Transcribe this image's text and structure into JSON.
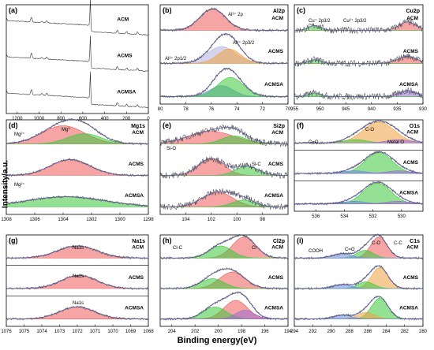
{
  "figure": {
    "x_axis_title": "Binding energy(eV)",
    "y_axis_title": "Intensity/a.u."
  },
  "colors": {
    "data_line": "#444444",
    "envelope": "#5a5aa0",
    "fills": [
      "#ee5a5a",
      "#3cc83c",
      "#f0a040",
      "#9a6ad0",
      "#6688dd",
      "#b0b0e0"
    ]
  },
  "chart_data": [
    {
      "type": "line",
      "panel": "(a)",
      "element": "",
      "xlim": [
        1300,
        0
      ],
      "xticks": [
        "0",
        "200",
        "400",
        "600",
        "800",
        "1000",
        "1200"
      ],
      "series": [
        {
          "name": "ACM",
          "peaks": []
        },
        {
          "name": "ACMS",
          "peaks": []
        },
        {
          "name": "ACMSA",
          "peaks": []
        }
      ]
    },
    {
      "type": "area",
      "panel": "(b)",
      "element": "Al2p",
      "xlim": [
        80,
        70
      ],
      "xticks": [
        "80",
        "78",
        "76",
        "74",
        "72",
        "70"
      ],
      "annotations": [
        "Al³⁺ 2p",
        "Al³⁺ 2p1/2",
        "Al³⁺ 2p3/2"
      ],
      "series": [
        {
          "name": "ACM",
          "peaks": [
            {
              "center": 75.9,
              "height": 0.9,
              "width": 1.0,
              "color": "#ee5a5a"
            }
          ]
        },
        {
          "name": "ACMS",
          "peaks": [
            {
              "center": 75.2,
              "height": 0.7,
              "width": 1.1,
              "color": "#b0b0e0"
            },
            {
              "center": 74.6,
              "height": 0.6,
              "width": 0.9,
              "color": "#f0a040"
            }
          ]
        },
        {
          "name": "ACMSA",
          "peaks": [
            {
              "center": 75.2,
              "height": 0.45,
              "width": 0.9,
              "color": "#6688dd"
            },
            {
              "center": 74.5,
              "height": 0.8,
              "width": 1.0,
              "color": "#3cc83c"
            }
          ]
        }
      ]
    },
    {
      "type": "area",
      "panel": "(c)",
      "element": "Cu2p",
      "xlim": [
        955,
        930
      ],
      "xticks": [
        "955",
        "950",
        "945",
        "940",
        "935",
        "930"
      ],
      "annotations": [
        "Cu⁺ 2p3/2",
        "Cu²⁺ 2p3/2"
      ],
      "series": [
        {
          "name": "ACM",
          "peaks": [
            {
              "center": 933,
              "height": 0.35,
              "width": 1.6,
              "color": "#ee5a5a"
            },
            {
              "center": 951,
              "height": 0.2,
              "width": 1.2,
              "color": "#3cc83c"
            }
          ]
        },
        {
          "name": "ACMS",
          "peaks": [
            {
              "center": 933,
              "height": 0.3,
              "width": 1.8,
              "color": "#ee5a5a"
            },
            {
              "center": 951,
              "height": 0.15,
              "width": 1.2,
              "color": "#3cc83c"
            }
          ]
        },
        {
          "name": "ACMSA",
          "peaks": [
            {
              "center": 933,
              "height": 0.25,
              "width": 1.6,
              "color": "#9a6ad0"
            },
            {
              "center": 951,
              "height": 0.15,
              "width": 1.2,
              "color": "#3cc83c"
            }
          ]
        }
      ]
    },
    {
      "type": "area",
      "panel": "(d)",
      "element": "Mg1s",
      "xlim": [
        1308,
        1298
      ],
      "xticks": [
        "1308",
        "1306",
        "1304",
        "1302",
        "1300",
        "1298"
      ],
      "annotations": [
        "Mg²⁺",
        "Mg⁰",
        "Mg²⁺"
      ],
      "series": [
        {
          "name": "ACM",
          "peaks": [
            {
              "center": 1304.0,
              "height": 0.8,
              "width": 1.5,
              "color": "#ee5a5a"
            },
            {
              "center": 1302.5,
              "height": 0.45,
              "width": 1.2,
              "color": "#3cc83c"
            }
          ]
        },
        {
          "name": "ACMS",
          "peaks": [
            {
              "center": 1303.5,
              "height": 0.7,
              "width": 1.4,
              "color": "#ee5a5a"
            }
          ]
        },
        {
          "name": "ACMSA",
          "peaks": [
            {
              "center": 1303.8,
              "height": 0.45,
              "width": 2.8,
              "color": "#3cc83c"
            }
          ]
        }
      ]
    },
    {
      "type": "area",
      "panel": "(e)",
      "element": "Si2p",
      "xlim": [
        106,
        96
      ],
      "xticks": [
        "104",
        "102",
        "100",
        "98"
      ],
      "annotations": [
        "Si-O",
        "Si-C"
      ],
      "series": [
        {
          "name": "ACM",
          "peaks": [
            {
              "center": 102.0,
              "height": 0.55,
              "width": 1.8,
              "color": "#ee5a5a"
            },
            {
              "center": 100.2,
              "height": 0.35,
              "width": 1.0,
              "color": "#3cc83c"
            }
          ]
        },
        {
          "name": "ACMS",
          "peaks": [
            {
              "center": 102.0,
              "height": 0.75,
              "width": 1.0,
              "color": "#ee5a5a"
            },
            {
              "center": 99.2,
              "height": 0.4,
              "width": 0.9,
              "color": "#3cc83c"
            }
          ]
        },
        {
          "name": "ACMSA",
          "peaks": [
            {
              "center": 101.5,
              "height": 0.65,
              "width": 1.2,
              "color": "#ee5a5a"
            },
            {
              "center": 99.5,
              "height": 0.3,
              "width": 0.9,
              "color": "#3cc83c"
            }
          ]
        }
      ]
    },
    {
      "type": "area",
      "panel": "(f)",
      "element": "O1s",
      "xlim": [
        537.5,
        528.5
      ],
      "xticks": [
        "536",
        "534",
        "532",
        "530"
      ],
      "annotations": [
        "C-O",
        "C=O",
        "Metal O"
      ],
      "series": [
        {
          "name": "ACM",
          "peaks": [
            {
              "center": 531.6,
              "height": 0.95,
              "width": 1.1,
              "color": "#f0a040"
            },
            {
              "center": 533.2,
              "height": 0.15,
              "width": 0.8,
              "color": "#3cc83c"
            },
            {
              "center": 530.2,
              "height": 0.15,
              "width": 0.8,
              "color": "#9a6ad0"
            }
          ]
        },
        {
          "name": "ACMS",
          "peaks": [
            {
              "center": 531.6,
              "height": 0.95,
              "width": 0.95,
              "color": "#3cc83c"
            },
            {
              "center": 533.3,
              "height": 0.12,
              "width": 0.8,
              "color": "#6688dd"
            },
            {
              "center": 530.2,
              "height": 0.12,
              "width": 0.8,
              "color": "#9a6ad0"
            }
          ]
        },
        {
          "name": "ACMSA",
          "peaks": [
            {
              "center": 531.7,
              "height": 0.95,
              "width": 0.95,
              "color": "#3cc83c"
            },
            {
              "center": 533.3,
              "height": 0.12,
              "width": 0.8,
              "color": "#6688dd"
            },
            {
              "center": 530.3,
              "height": 0.12,
              "width": 0.8,
              "color": "#9a6ad0"
            }
          ]
        }
      ]
    },
    {
      "type": "area",
      "panel": "(g)",
      "element": "Na1s",
      "xlim": [
        1076,
        1068
      ],
      "xticks": [
        "1076",
        "1075",
        "1074",
        "1073",
        "1072",
        "1071",
        "1070",
        "1069",
        "1068"
      ],
      "annotations": [
        "Na1s",
        "Na1s",
        "Na1s"
      ],
      "series": [
        {
          "name": "ACM",
          "peaks": [
            {
              "center": 1072.0,
              "height": 0.55,
              "width": 1.1,
              "color": "#ee5a5a"
            }
          ]
        },
        {
          "name": "ACMS",
          "peaks": [
            {
              "center": 1071.9,
              "height": 0.6,
              "width": 1.0,
              "color": "#ee5a5a"
            }
          ]
        },
        {
          "name": "ACMSA",
          "peaks": [
            {
              "center": 1072.0,
              "height": 0.55,
              "width": 1.0,
              "color": "#ee5a5a"
            }
          ]
        }
      ]
    },
    {
      "type": "area",
      "panel": "(h)",
      "element": "Cl2p",
      "xlim": [
        205,
        194
      ],
      "xticks": [
        "204",
        "202",
        "200",
        "198",
        "196",
        "194"
      ],
      "annotations": [
        "Cl-C",
        "Cl⁻"
      ],
      "series": [
        {
          "name": "ACM",
          "peaks": [
            {
              "center": 197.8,
              "height": 0.95,
              "width": 1.0,
              "color": "#ee5a5a"
            },
            {
              "center": 199.8,
              "height": 0.55,
              "width": 1.0,
              "color": "#3cc83c"
            }
          ]
        },
        {
          "name": "ACMS",
          "peaks": [
            {
              "center": 198.8,
              "height": 0.75,
              "width": 1.1,
              "color": "#ee5a5a"
            },
            {
              "center": 200.5,
              "height": 0.45,
              "width": 1.0,
              "color": "#3cc83c"
            }
          ]
        },
        {
          "name": "ACMSA",
          "peaks": [
            {
              "center": 198.5,
              "height": 0.85,
              "width": 1.0,
              "color": "#ee5a5a"
            },
            {
              "center": 200.3,
              "height": 0.55,
              "width": 1.0,
              "color": "#3cc83c"
            },
            {
              "center": 197.7,
              "height": 0.4,
              "width": 0.8,
              "color": "#9a6ad0"
            }
          ]
        }
      ]
    },
    {
      "type": "area",
      "panel": "(i)",
      "element": "C1s",
      "xlim": [
        294,
        280
      ],
      "xticks": [
        "294",
        "292",
        "290",
        "288",
        "286",
        "284",
        "282",
        "280"
      ],
      "annotations": [
        "COOH",
        "C=O",
        "C-O",
        "C-C"
      ],
      "series": [
        {
          "name": "ACM",
          "peaks": [
            {
              "center": 284.8,
              "height": 0.95,
              "width": 0.9,
              "color": "#ee5a5a"
            },
            {
              "center": 286.3,
              "height": 0.35,
              "width": 0.9,
              "color": "#3cc83c"
            },
            {
              "center": 288.8,
              "height": 0.2,
              "width": 1.0,
              "color": "#6688dd"
            }
          ]
        },
        {
          "name": "ACMS",
          "peaks": [
            {
              "center": 284.7,
              "height": 0.95,
              "width": 0.9,
              "color": "#f0a040"
            },
            {
              "center": 286.2,
              "height": 0.3,
              "width": 0.9,
              "color": "#3cc83c"
            },
            {
              "center": 288.8,
              "height": 0.18,
              "width": 1.0,
              "color": "#6688dd"
            }
          ]
        },
        {
          "name": "ACMSA",
          "peaks": [
            {
              "center": 284.7,
              "height": 0.95,
              "width": 0.9,
              "color": "#3cc83c"
            },
            {
              "center": 286.2,
              "height": 0.3,
              "width": 0.9,
              "color": "#f0a040"
            },
            {
              "center": 288.8,
              "height": 0.18,
              "width": 1.0,
              "color": "#6688dd"
            }
          ]
        }
      ]
    }
  ]
}
